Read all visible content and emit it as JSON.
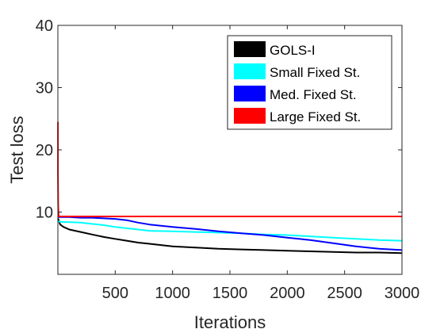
{
  "chart_data": {
    "type": "line",
    "title": "",
    "xlabel": "Iterations",
    "ylabel": "Test loss",
    "xlim": [
      0,
      3000
    ],
    "ylim": [
      0,
      40
    ],
    "xticks": [
      500,
      1000,
      1500,
      2000,
      2500,
      3000
    ],
    "yticks": [
      10,
      20,
      30,
      40
    ],
    "grid": false,
    "legend_position": "top-right",
    "series": [
      {
        "name": "GOLS-I",
        "color": "#000000",
        "x": [
          1,
          20,
          50,
          100,
          200,
          300,
          400,
          500,
          600,
          700,
          800,
          900,
          1000,
          1200,
          1400,
          1600,
          1800,
          2000,
          2200,
          2400,
          2600,
          2800,
          3000
        ],
        "y": [
          9.0,
          8.0,
          7.6,
          7.2,
          6.8,
          6.4,
          6.0,
          5.7,
          5.4,
          5.1,
          4.9,
          4.7,
          4.5,
          4.3,
          4.1,
          4.0,
          3.9,
          3.8,
          3.7,
          3.6,
          3.5,
          3.5,
          3.4
        ]
      },
      {
        "name": "Small Fixed St.",
        "color": "#00ffff",
        "x": [
          1,
          50,
          100,
          200,
          300,
          400,
          500,
          600,
          700,
          800,
          1000,
          1200,
          1400,
          1600,
          1800,
          2000,
          2200,
          2400,
          2600,
          2800,
          3000
        ],
        "y": [
          8.5,
          8.4,
          8.4,
          8.3,
          8.1,
          7.9,
          7.6,
          7.4,
          7.2,
          7.0,
          6.9,
          6.8,
          6.7,
          6.6,
          6.4,
          6.3,
          6.1,
          5.9,
          5.7,
          5.5,
          5.4
        ]
      },
      {
        "name": "Med. Fixed St.",
        "color": "#0000ff",
        "x": [
          1,
          50,
          100,
          200,
          300,
          400,
          500,
          600,
          700,
          800,
          900,
          1000,
          1200,
          1400,
          1600,
          1800,
          2000,
          2200,
          2400,
          2600,
          2800,
          3000
        ],
        "y": [
          9.2,
          9.2,
          9.2,
          9.1,
          9.1,
          9.0,
          8.9,
          8.7,
          8.3,
          8.0,
          7.8,
          7.6,
          7.3,
          6.9,
          6.6,
          6.3,
          5.9,
          5.5,
          5.0,
          4.5,
          4.1,
          3.9
        ]
      },
      {
        "name": "Large Fixed St.",
        "color": "#ff0000",
        "x": [
          1,
          1,
          3,
          6,
          10,
          30,
          100,
          500,
          1000,
          1500,
          2000,
          2500,
          3000
        ],
        "y": [
          24.5,
          16.0,
          11.0,
          9.6,
          9.3,
          9.3,
          9.3,
          9.3,
          9.3,
          9.3,
          9.3,
          9.3,
          9.3
        ]
      }
    ]
  }
}
